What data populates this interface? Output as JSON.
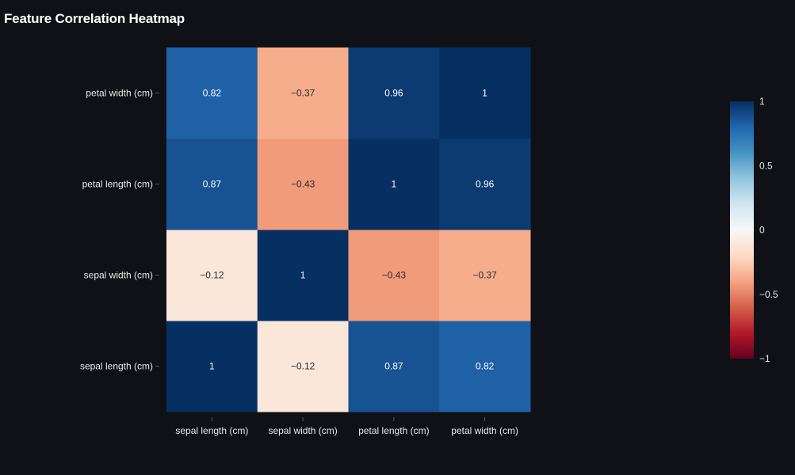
{
  "chart_data": {
    "type": "heatmap",
    "title": "Feature Correlation Heatmap",
    "x": [
      "sepal length (cm)",
      "sepal width (cm)",
      "petal length (cm)",
      "petal width (cm)"
    ],
    "y": [
      "sepal length (cm)",
      "sepal width (cm)",
      "petal length (cm)",
      "petal width (cm)"
    ],
    "z": [
      [
        1,
        -0.12,
        0.87,
        0.82
      ],
      [
        -0.12,
        1,
        -0.43,
        -0.37
      ],
      [
        0.87,
        -0.43,
        1,
        0.96
      ],
      [
        0.82,
        -0.37,
        0.96,
        1
      ]
    ],
    "text": [
      [
        "1",
        "−0.12",
        "0.87",
        "0.82"
      ],
      [
        "−0.12",
        "1",
        "−0.43",
        "−0.37"
      ],
      [
        "0.87",
        "−0.43",
        "1",
        "0.96"
      ],
      [
        "0.82",
        "−0.37",
        "0.96",
        "1"
      ]
    ],
    "zmin": -1,
    "zmax": 1,
    "colorscale": "RdBu",
    "colorbar": {
      "ticks": [
        1,
        0.5,
        0,
        -0.5,
        -1
      ],
      "tick_labels": [
        "1",
        "0.5",
        "0",
        "−0.5",
        "−1"
      ]
    },
    "xlabel": "",
    "ylabel": ""
  },
  "colors": {
    "background": "#0f1116",
    "text": "#e8e8e8"
  }
}
